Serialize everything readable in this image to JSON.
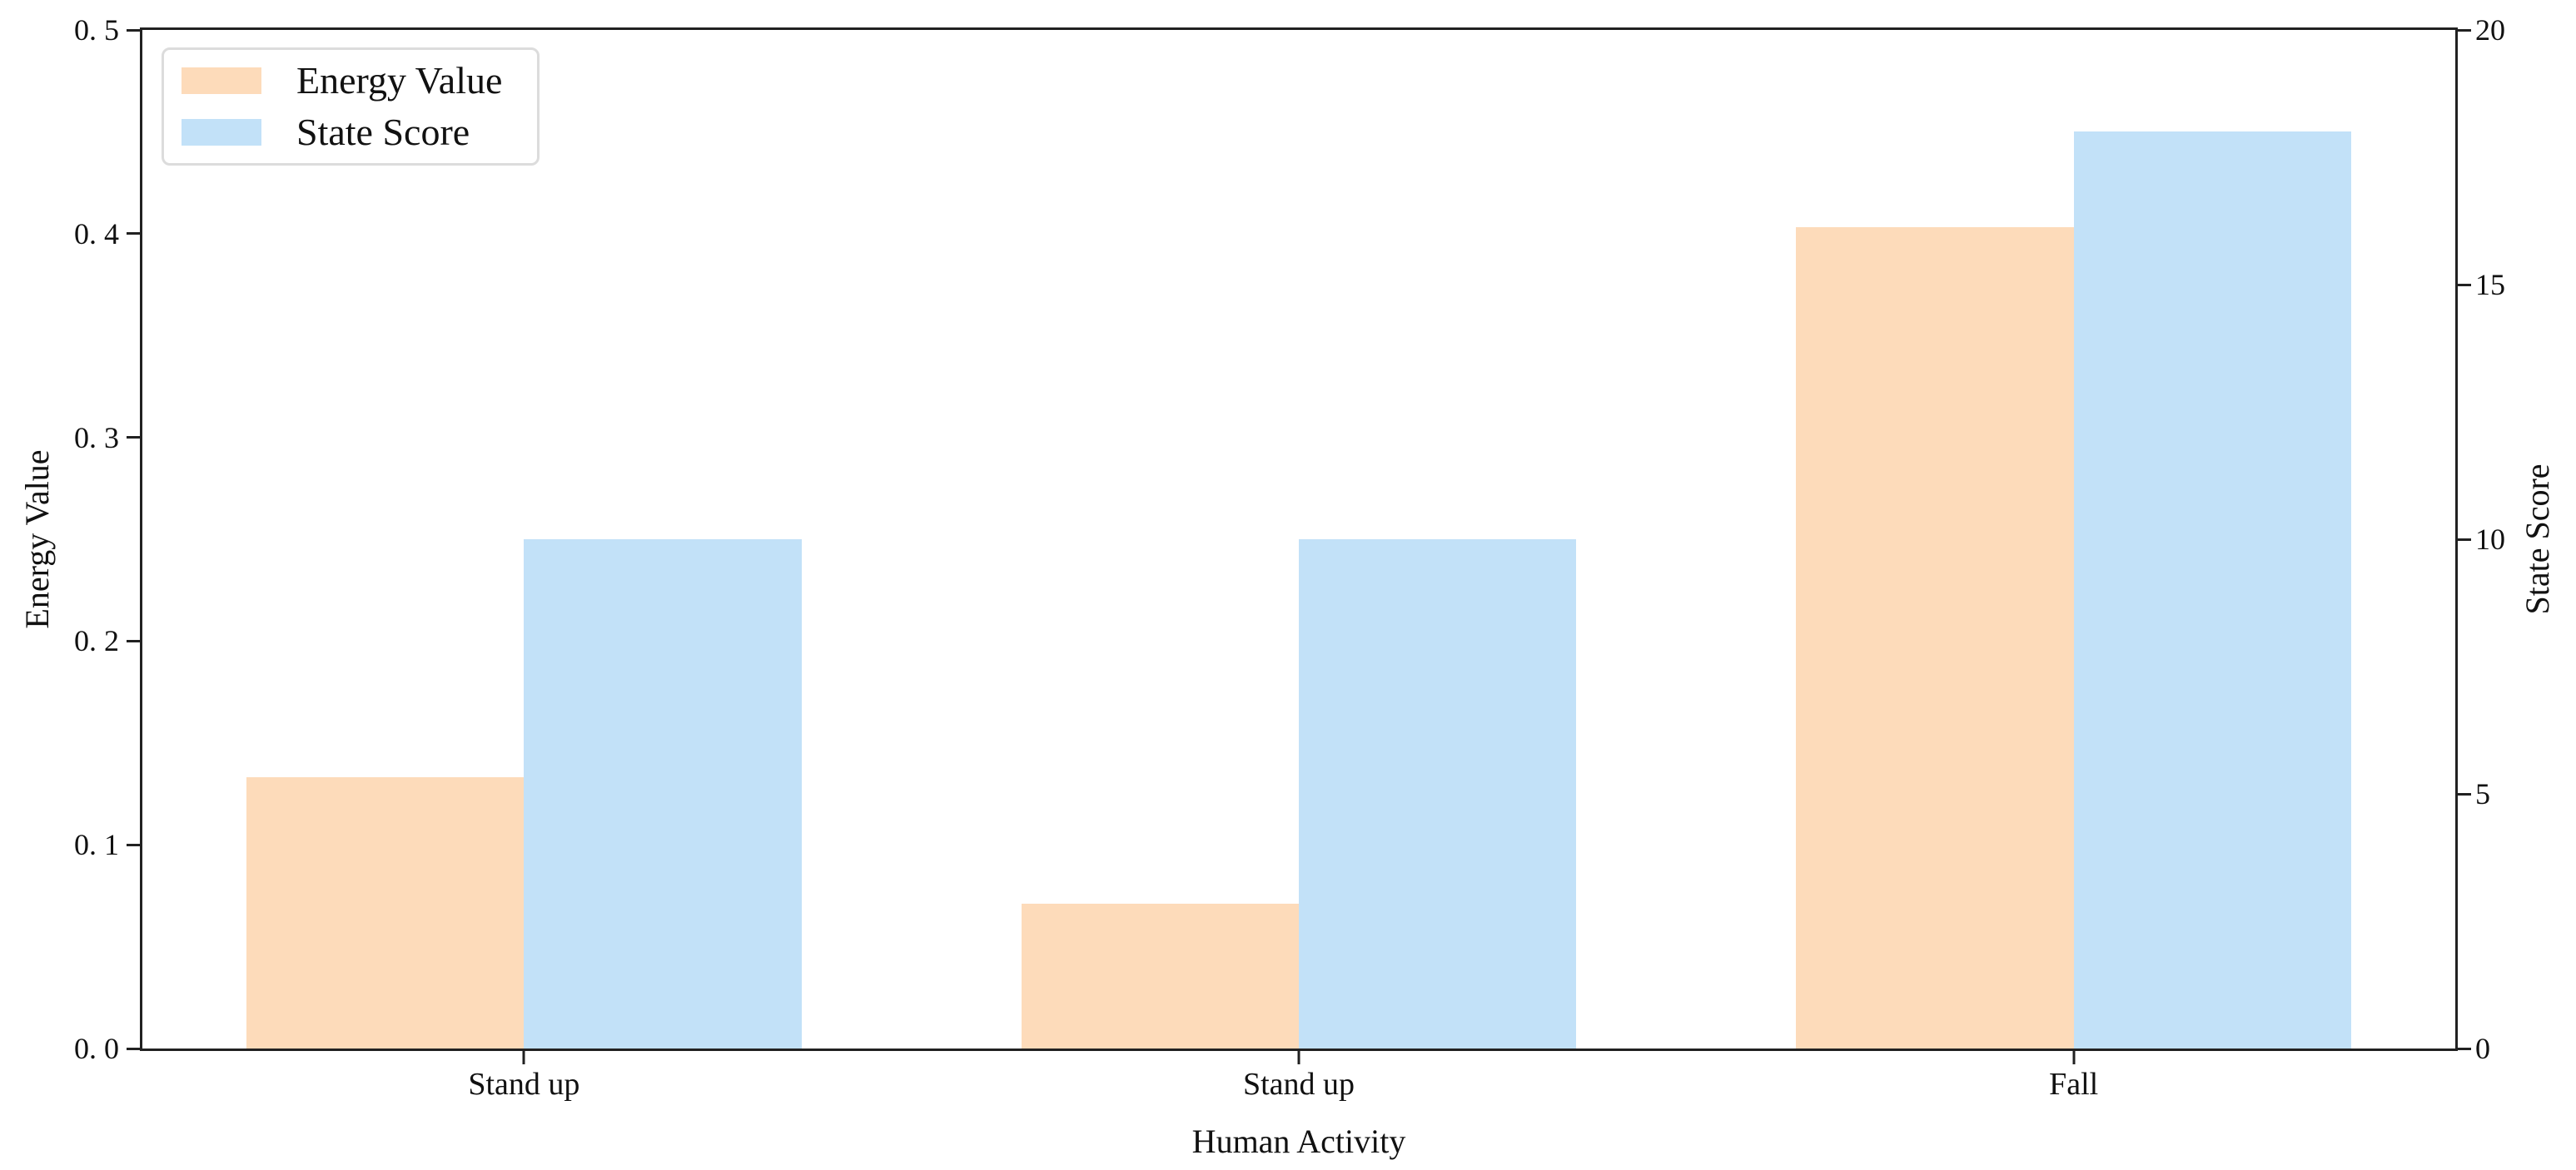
{
  "figure": {
    "background": "#ffffff"
  },
  "legend": {
    "items": [
      {
        "label": "Energy Value",
        "color": "#FDDBBA"
      },
      {
        "label": "State Score",
        "color": "#C2E1F8"
      }
    ]
  },
  "chart_data": {
    "type": "bar",
    "title": "",
    "xlabel": "Human Activity",
    "ylabel_left": "Energy Value",
    "ylabel_right": "State Score",
    "categories": [
      "Stand up",
      "Stand up",
      "Fall"
    ],
    "series": [
      {
        "name": "Energy Value",
        "axis": "left",
        "color": "#FDDBBA",
        "values": [
          0.133,
          0.071,
          0.403
        ]
      },
      {
        "name": "State Score",
        "axis": "right",
        "color": "#C2E1F8",
        "values": [
          10,
          10,
          18
        ]
      }
    ],
    "ylim_left": [
      0,
      0.5
    ],
    "ylim_right": [
      0,
      20
    ],
    "yticks_left": {
      "values": [
        0,
        0.1,
        0.2,
        0.3,
        0.4,
        0.5
      ],
      "labels": [
        "0. 0",
        "0. 1",
        "0. 2",
        "0. 3",
        "0. 4",
        "0. 5"
      ]
    },
    "yticks_right": {
      "values": [
        0,
        5,
        10,
        15,
        20
      ],
      "labels": [
        "0",
        "5",
        "10",
        "15",
        "20"
      ]
    },
    "grid": false,
    "legend_position": "upper left",
    "axis_color": "#212121",
    "background": "#ffffff"
  }
}
